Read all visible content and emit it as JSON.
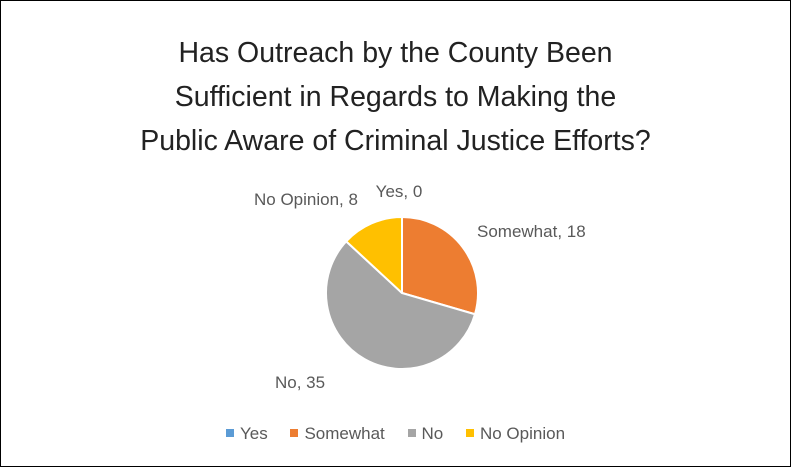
{
  "chart_data": {
    "type": "pie",
    "title_lines": [
      "Has Outreach by the County Been",
      "Sufficient in Regards to Making the",
      "Public Aware of Criminal Justice Efforts?"
    ],
    "categories": [
      "Yes",
      "Somewhat",
      "No",
      "No Opinion"
    ],
    "values": [
      0,
      18,
      35,
      8
    ],
    "data_labels": [
      "Yes, 0",
      "Somewhat, 18",
      "No, 35",
      "No Opinion, 8"
    ],
    "colors": [
      "#5B9BD5",
      "#ED7D31",
      "#A5A5A5",
      "#FFC000"
    ],
    "legend_position": "bottom",
    "start_angle": "12 o'clock",
    "direction": "clockwise"
  }
}
